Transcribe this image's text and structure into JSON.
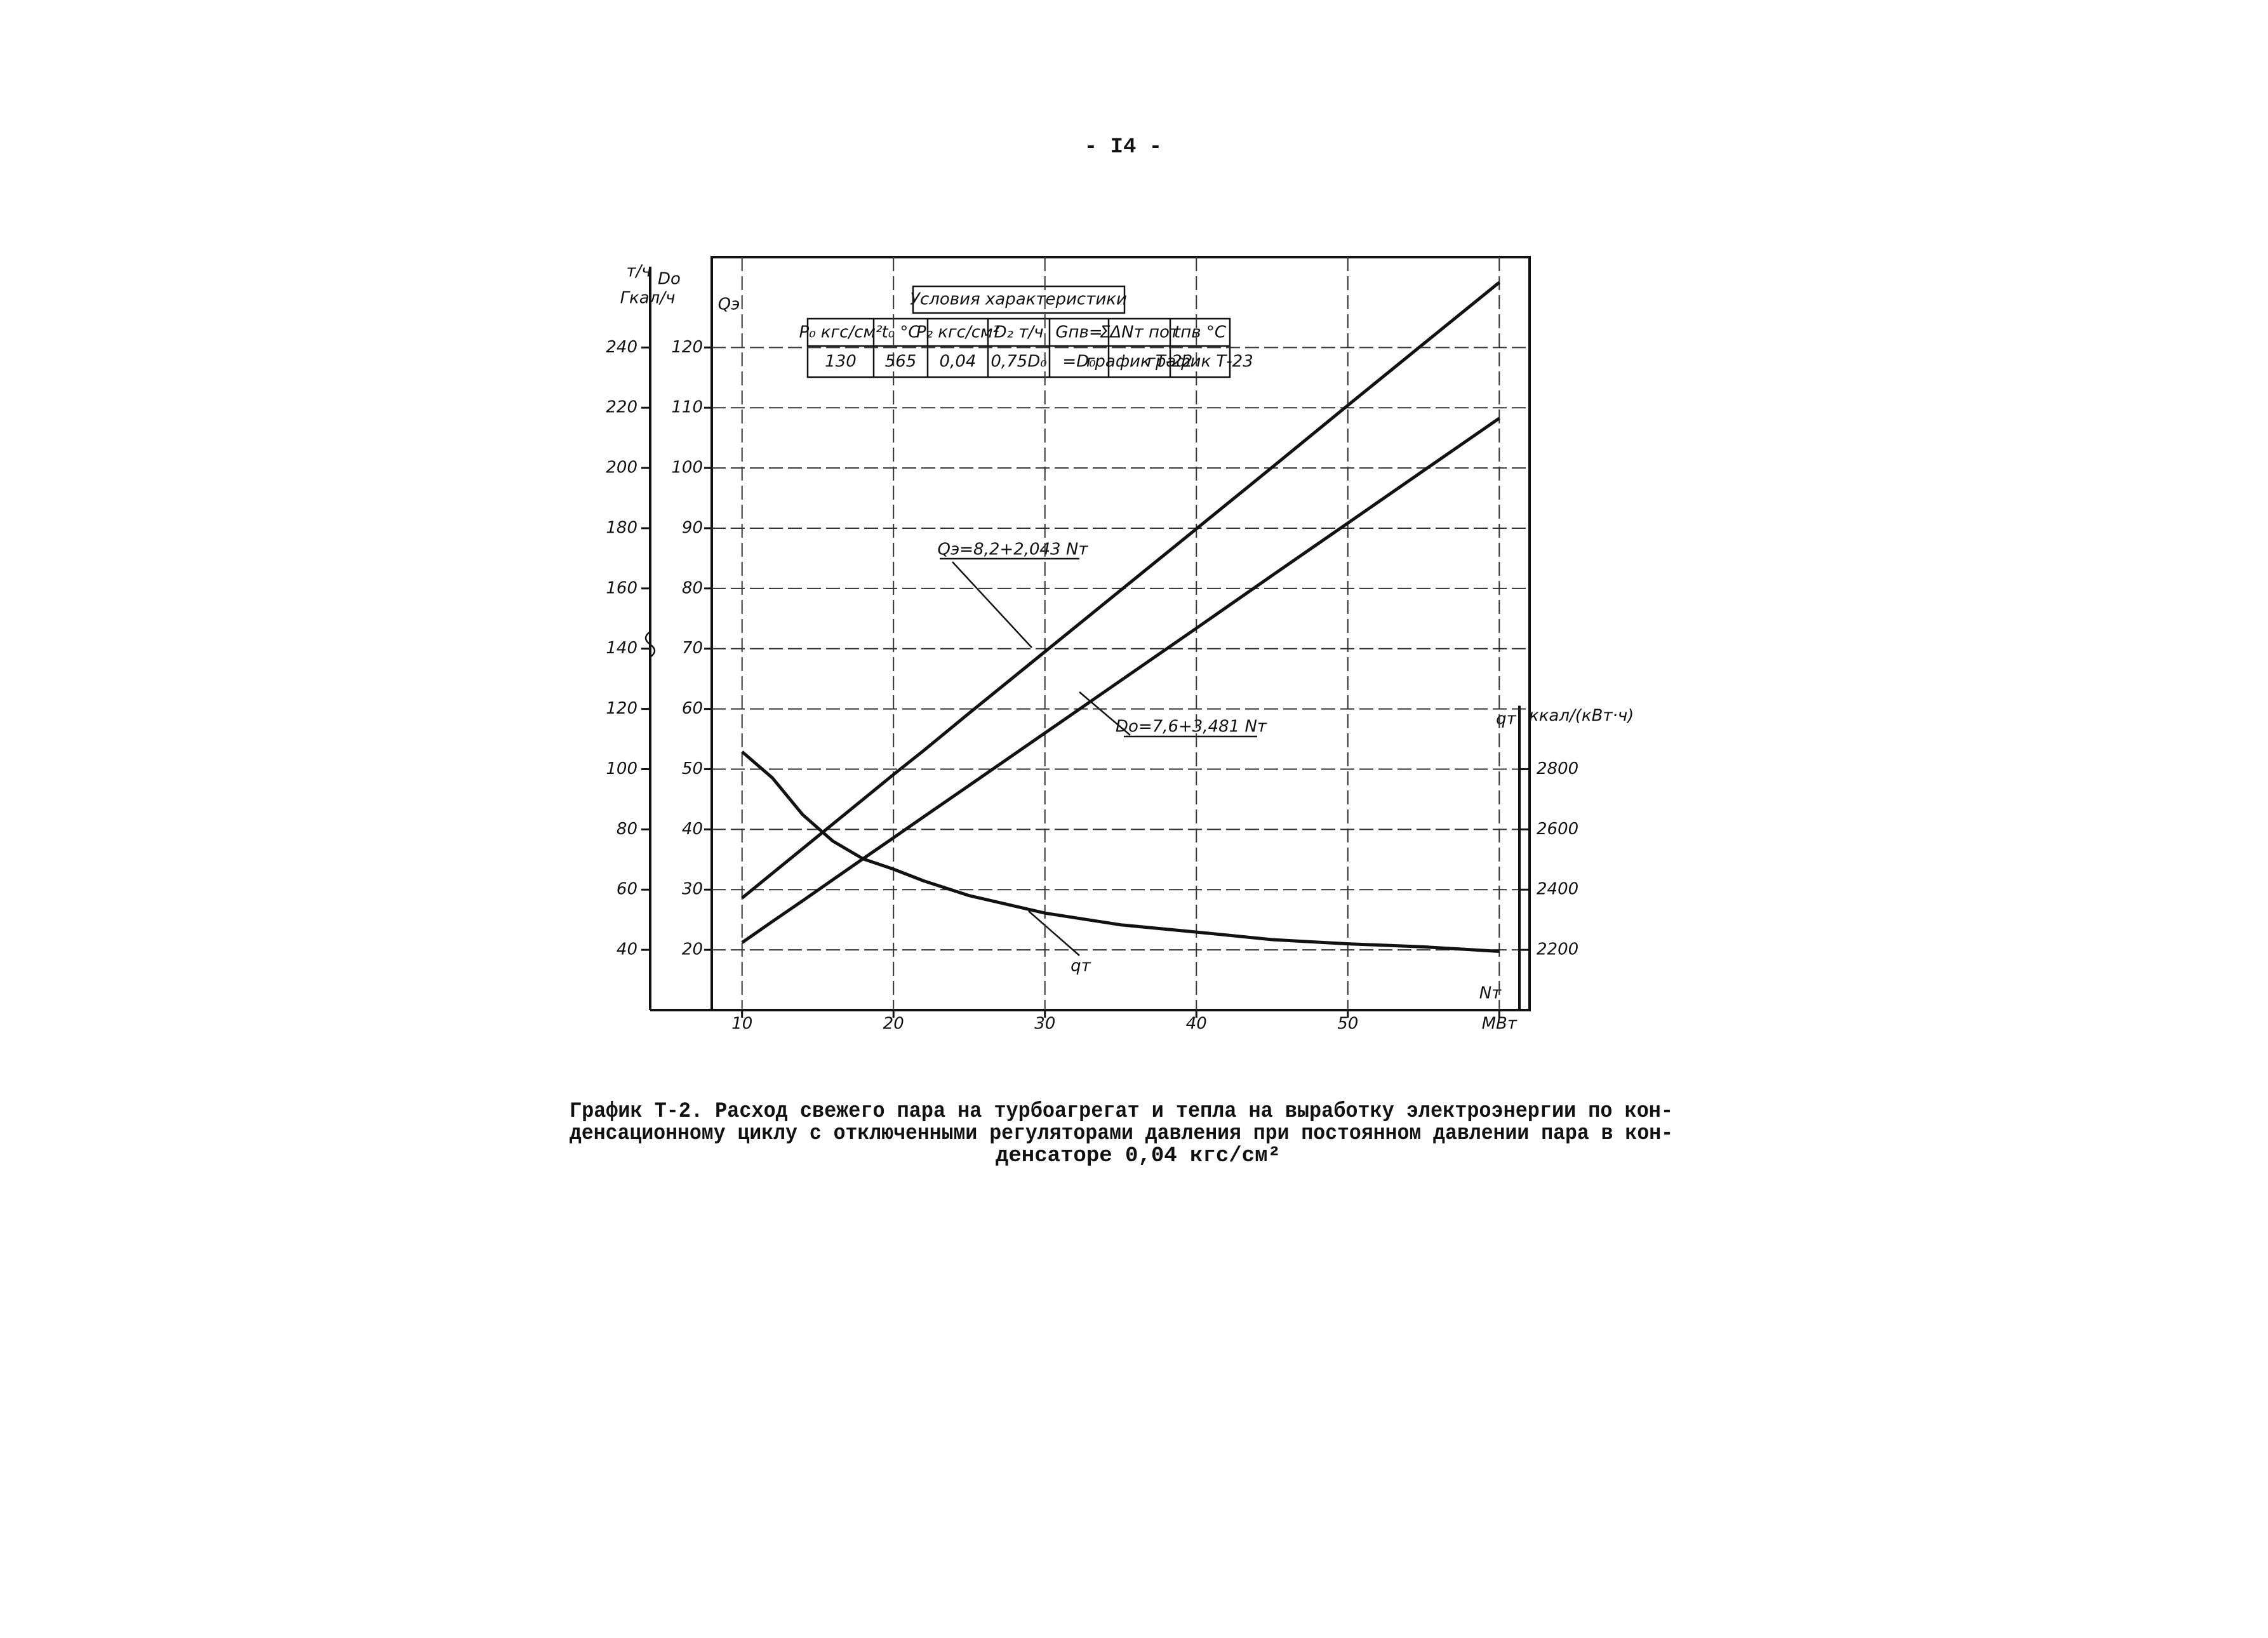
{
  "page_number": "- I4 -",
  "conditions_table": {
    "title": "Условия характеристики",
    "header": [
      "P₀ кгс/см²",
      "t₀ °C",
      "P₂ кгс/см²",
      "D₂ т/ч",
      "Gпв=",
      "ΣΔNт пот",
      "tпв °C"
    ],
    "row": [
      "130",
      "565",
      "0,04",
      "0,75D₀",
      "=D₀",
      "график Т-22",
      "график Т-23"
    ]
  },
  "chart_data": {
    "type": "line",
    "x": [
      10,
      12,
      14,
      16,
      18,
      20,
      22,
      25,
      30,
      35,
      40,
      45,
      50,
      55,
      60
    ],
    "xlim": [
      8,
      62
    ],
    "xticks": [
      10,
      20,
      30,
      40,
      50,
      {
        "value": 60,
        "label": "МВт"
      }
    ],
    "xlabel": "Nт",
    "ylim": [
      10,
      135
    ],
    "yticks": [
      20,
      30,
      40,
      50,
      60,
      70,
      80,
      90,
      100,
      110,
      120
    ],
    "ylabel": "Qэ",
    "yunit": "Гкал/ч",
    "y2lim": [
      20,
      270
    ],
    "y2ticks": [
      40,
      60,
      80,
      100,
      120,
      140,
      160,
      180,
      200,
      220,
      240
    ],
    "y2label": "Dо",
    "y2unit": "т/ч",
    "y3lim": [
      2000,
      4500
    ],
    "y3ticks": [
      2200,
      2400,
      2600,
      2800
    ],
    "y3label": "qт",
    "y3unit": "ккал/(кВт·ч)",
    "grid": true,
    "series": [
      {
        "name": "Qэ=8,2+2,043 Nт",
        "axis": "y",
        "color": "#111111",
        "values": [
          28.6,
          32.7,
          36.8,
          40.9,
          45.0,
          49.1,
          53.1,
          59.3,
          69.5,
          79.7,
          89.9,
          100.1,
          110.4,
          120.6,
          130.8
        ]
      },
      {
        "name": "Dо=7,6+3,481 Nт",
        "axis": "y2",
        "color": "#111111",
        "values": [
          42.4,
          49.4,
          56.3,
          63.3,
          70.3,
          77.2,
          84.2,
          94.6,
          112.0,
          129.4,
          146.8,
          164.3,
          181.7,
          199.1,
          216.5
        ]
      },
      {
        "name": "qт",
        "axis": "y3",
        "color": "#111111",
        "values": [
          2858,
          2771,
          2649,
          2561,
          2502,
          2468,
          2429,
          2380,
          2322,
          2283,
          2259,
          2234,
          2220,
          2210,
          2195
        ]
      }
    ]
  },
  "caption": [
    "График Т-2. Расход свежего пара на турбоагрегат и тепла на выработку электроэнергии по кон-",
    "денсационному циклу с отключенными регуляторами давления при постоянном давлении пара в кон-",
    "денсаторе 0,04 кгс/см²"
  ]
}
